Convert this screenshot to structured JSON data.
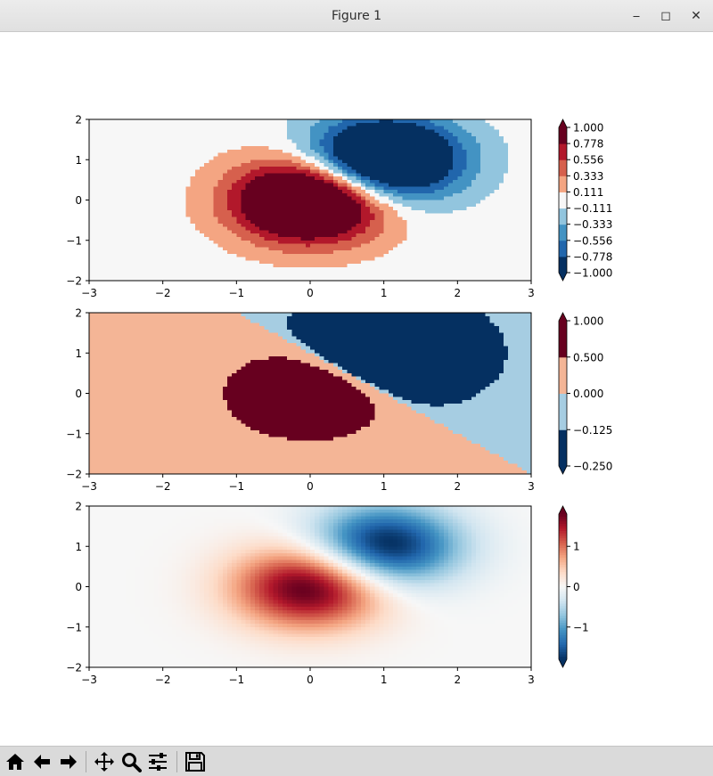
{
  "window": {
    "title": "Figure 1",
    "minimize_label": "⎯",
    "maximize_label": "◻",
    "close_label": "✕"
  },
  "toolbar": {
    "items": [
      {
        "name": "home-icon"
      },
      {
        "name": "back-arrow-icon"
      },
      {
        "name": "forward-arrow-icon"
      },
      {
        "name": "pan-icon"
      },
      {
        "name": "zoom-icon"
      },
      {
        "name": "subplots-icon"
      },
      {
        "name": "save-icon"
      }
    ]
  },
  "chart_data": [
    {
      "type": "heatmap",
      "xlim": [
        -3,
        3
      ],
      "ylim": [
        -2,
        2
      ],
      "xticks": [
        -3,
        -2,
        -1,
        0,
        1,
        2,
        3
      ],
      "yticks": [
        -2,
        -1,
        0,
        1,
        2
      ],
      "levels": [
        -1.0,
        -0.778,
        -0.556,
        -0.333,
        -0.111,
        0.111,
        0.333,
        0.556,
        0.778,
        1.0
      ],
      "colorbar_ticks": [
        "1.000",
        "0.778",
        "0.556",
        "0.333",
        "0.111",
        "−0.111",
        "−0.333",
        "−0.556",
        "−0.778",
        "−1.000"
      ],
      "colorbar_extend": "both",
      "colormap": "RdBu_r",
      "colors": [
        "#053061",
        "#2166ac",
        "#4393c3",
        "#92c5de",
        "#f7f7f7",
        "#f4a582",
        "#d6604d",
        "#b2182b",
        "#67001f"
      ],
      "over_color": "#67001f",
      "under_color": "#053061"
    },
    {
      "type": "heatmap",
      "xlim": [
        -3,
        3
      ],
      "ylim": [
        -2,
        2
      ],
      "xticks": [
        -3,
        -2,
        -1,
        0,
        1,
        2,
        3
      ],
      "yticks": [
        -2,
        -1,
        0,
        1,
        2
      ],
      "levels": [
        -0.25,
        -0.125,
        0.0,
        0.5,
        1.0
      ],
      "colorbar_ticks": [
        "1.000",
        "0.500",
        "0.000",
        "−0.125",
        "−0.250"
      ],
      "colorbar_extend": "both",
      "colors": [
        "#053061",
        "#a6cde2",
        "#f4b596",
        "#67001f"
      ],
      "over_color": "#67001f",
      "under_color": "#053061"
    },
    {
      "type": "heatmap",
      "xlim": [
        -3,
        3
      ],
      "ylim": [
        -2,
        2
      ],
      "xticks": [
        -3,
        -2,
        -1,
        0,
        1,
        2,
        3
      ],
      "yticks": [
        -2,
        -1,
        0,
        1,
        2
      ],
      "vmin": -1.8,
      "vmax": 1.8,
      "colorbar_ticks": [
        "1",
        "0",
        "−1"
      ],
      "colorbar_tick_values": [
        1,
        0,
        -1
      ],
      "colorbar_extend": "both",
      "colormap": "RdBu_r",
      "over_color": "#67001f",
      "under_color": "#053061"
    }
  ]
}
